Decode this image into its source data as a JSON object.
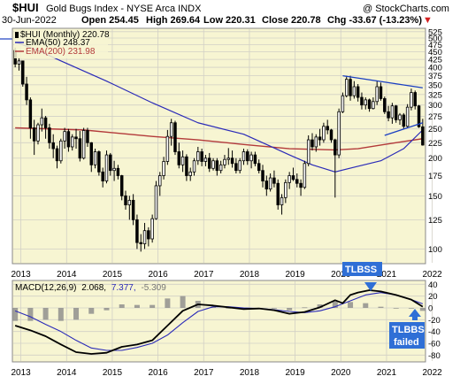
{
  "header": {
    "symbol": "$HUI",
    "name": "Gold Bugs Index - NYSE Arca INDX",
    "copyright": "@ StockCharts.com",
    "date": "30-Jun-2022",
    "open": "Open 254.45",
    "high": "High 269.64",
    "low": "Low 220.31",
    "close": "Close 220.78",
    "chg": "Chg -33.67 (-13.23%)",
    "chg_symbol": "▼"
  },
  "legend": {
    "price": "$HUI (Monthly) 220.78",
    "ema50": "EMA(50) 248.37",
    "ema200": "EMA(200) 231.98"
  },
  "macd_label": {
    "name": "MACD(12,26,9)",
    "macd": "2.068,",
    "signal": "7.377,",
    "hist": "-5.309"
  },
  "annotations": {
    "tlbss": "TLBSS",
    "tlbbs": "TLBBS",
    "failed": "failed"
  },
  "colors": {
    "panel_bg": "#f7f5d2",
    "grid": "#d2d0c6",
    "candle": "#000000",
    "ema50": "#2b2bb8",
    "ema200": "#b33a3a",
    "trendline": "#1a3fc2",
    "annotation": "#2f6fd6",
    "hist": "#8a8a8a"
  },
  "chart_data": [
    {
      "type": "candlestick",
      "title": "$HUI Gold Bugs Index - NYSE Arca INDX (Monthly)",
      "x_labels": [
        "2013",
        "2014",
        "2015",
        "2016",
        "2017",
        "2018",
        "2019",
        "2020",
        "2021",
        "2022"
      ],
      "y_ticks": [
        100,
        125,
        150,
        175,
        200,
        225,
        250,
        275,
        300,
        325,
        350,
        375,
        400,
        425,
        450,
        475,
        500,
        525
      ],
      "y_scale": "log",
      "ylim": [
        90,
        535
      ],
      "ohlc": [
        [
          455,
          465,
          400,
          410
        ],
        [
          410,
          430,
          390,
          420
        ],
        [
          420,
          420,
          345,
          352
        ],
        [
          352,
          372,
          300,
          312
        ],
        [
          312,
          318,
          232,
          252
        ],
        [
          252,
          268,
          205,
          228
        ],
        [
          228,
          262,
          222,
          258
        ],
        [
          258,
          292,
          245,
          272
        ],
        [
          272,
          276,
          232,
          252
        ],
        [
          252,
          260,
          215,
          225
        ],
        [
          225,
          240,
          200,
          215
        ],
        [
          215,
          220,
          185,
          196
        ],
        [
          196,
          232,
          192,
          228
        ],
        [
          228,
          252,
          215,
          245
        ],
        [
          245,
          250,
          210,
          218
        ],
        [
          218,
          240,
          212,
          235
        ],
        [
          235,
          250,
          215,
          232
        ],
        [
          232,
          246,
          195,
          200
        ],
        [
          200,
          252,
          198,
          247
        ],
        [
          247,
          252,
          218,
          225
        ],
        [
          225,
          226,
          180,
          190
        ],
        [
          190,
          215,
          185,
          210
        ],
        [
          210,
          212,
          175,
          180
        ],
        [
          180,
          186,
          160,
          168
        ],
        [
          168,
          212,
          165,
          205
        ],
        [
          205,
          208,
          175,
          182
        ],
        [
          182,
          196,
          168,
          185
        ],
        [
          185,
          190,
          170,
          175
        ],
        [
          175,
          176,
          145,
          150
        ],
        [
          150,
          156,
          135,
          140
        ],
        [
          140,
          150,
          125,
          145
        ],
        [
          145,
          152,
          120,
          125
        ],
        [
          125,
          130,
          100,
          105
        ],
        [
          105,
          112,
          98,
          104
        ],
        [
          104,
          122,
          100,
          115
        ],
        [
          115,
          118,
          102,
          108
        ],
        [
          108,
          130,
          105,
          126
        ],
        [
          126,
          168,
          125,
          162
        ],
        [
          162,
          180,
          150,
          175
        ],
        [
          175,
          202,
          170,
          195
        ],
        [
          195,
          248,
          190,
          236
        ],
        [
          236,
          270,
          220,
          262
        ],
        [
          262,
          266,
          205,
          210
        ],
        [
          210,
          225,
          185,
          190
        ],
        [
          190,
          212,
          180,
          202
        ],
        [
          202,
          206,
          168,
          175
        ],
        [
          175,
          186,
          168,
          180
        ],
        [
          180,
          200,
          175,
          196
        ],
        [
          196,
          218,
          190,
          210
        ],
        [
          210,
          215,
          188,
          195
        ],
        [
          195,
          205,
          188,
          200
        ],
        [
          200,
          208,
          180,
          185
        ],
        [
          185,
          200,
          182,
          196
        ],
        [
          196,
          200,
          175,
          182
        ],
        [
          182,
          196,
          178,
          190
        ],
        [
          190,
          205,
          185,
          198
        ],
        [
          198,
          216,
          190,
          200
        ],
        [
          200,
          212,
          186,
          192
        ],
        [
          192,
          200,
          178,
          182
        ],
        [
          182,
          200,
          178,
          196
        ],
        [
          196,
          215,
          190,
          210
        ],
        [
          210,
          214,
          190,
          196
        ],
        [
          196,
          210,
          185,
          205
        ],
        [
          205,
          210,
          188,
          192
        ],
        [
          192,
          198,
          178,
          182
        ],
        [
          182,
          190,
          160,
          168
        ],
        [
          168,
          175,
          150,
          158
        ],
        [
          158,
          178,
          155,
          172
        ],
        [
          172,
          182,
          160,
          165
        ],
        [
          165,
          170,
          135,
          140
        ],
        [
          140,
          152,
          130,
          148
        ],
        [
          148,
          170,
          142,
          166
        ],
        [
          166,
          180,
          158,
          175
        ],
        [
          175,
          186,
          168,
          170
        ],
        [
          170,
          178,
          160,
          165
        ],
        [
          165,
          170,
          150,
          160
        ],
        [
          160,
          196,
          158,
          192
        ],
        [
          192,
          238,
          188,
          230
        ],
        [
          230,
          242,
          212,
          218
        ],
        [
          218,
          240,
          210,
          235
        ],
        [
          235,
          250,
          220,
          230
        ],
        [
          230,
          262,
          225,
          255
        ],
        [
          255,
          268,
          240,
          248
        ],
        [
          248,
          250,
          225,
          230
        ],
        [
          230,
          232,
          148,
          205
        ],
        [
          205,
          292,
          200,
          285
        ],
        [
          285,
          330,
          282,
          322
        ],
        [
          322,
          375,
          318,
          365
        ],
        [
          365,
          375,
          310,
          322
        ],
        [
          322,
          360,
          315,
          345
        ],
        [
          345,
          352,
          308,
          318
        ],
        [
          318,
          330,
          290,
          300
        ],
        [
          300,
          318,
          290,
          312
        ],
        [
          312,
          315,
          285,
          292
        ],
        [
          292,
          318,
          290,
          308
        ],
        [
          308,
          360,
          300,
          345
        ],
        [
          345,
          356,
          310,
          315
        ],
        [
          315,
          320,
          280,
          285
        ],
        [
          285,
          298,
          265,
          272
        ],
        [
          272,
          305,
          260,
          298
        ],
        [
          298,
          300,
          262,
          268
        ],
        [
          268,
          282,
          258,
          278
        ],
        [
          278,
          282,
          250,
          255
        ],
        [
          255,
          302,
          252,
          295
        ],
        [
          295,
          340,
          288,
          330
        ],
        [
          330,
          335,
          290,
          298
        ],
        [
          298,
          300,
          252,
          254
        ],
        [
          254,
          270,
          220,
          221
        ]
      ],
      "ema50_series": [
        [
          0,
          485
        ],
        [
          6,
          455
        ],
        [
          12,
          420
        ],
        [
          24,
          360
        ],
        [
          36,
          305
        ],
        [
          48,
          262
        ],
        [
          60,
          240
        ],
        [
          66,
          222
        ],
        [
          72,
          205
        ],
        [
          78,
          190
        ],
        [
          84,
          180
        ],
        [
          90,
          188
        ],
        [
          96,
          196
        ],
        [
          102,
          215
        ],
        [
          107,
          248
        ]
      ],
      "ema200_series": [
        [
          0,
          252
        ],
        [
          18,
          248
        ],
        [
          36,
          236
        ],
        [
          48,
          230
        ],
        [
          60,
          222
        ],
        [
          72,
          215
        ],
        [
          84,
          213
        ],
        [
          90,
          215
        ],
        [
          96,
          221
        ],
        [
          102,
          227
        ],
        [
          107,
          232
        ]
      ],
      "trendlines": [
        {
          "from": [
            86,
            375
          ],
          "to": [
            107,
            342
          ]
        },
        {
          "from": [
            97,
            238
          ],
          "to": [
            107,
            262
          ]
        }
      ]
    },
    {
      "type": "macd",
      "title": "MACD(12,26,9)",
      "y_ticks": [
        40,
        20,
        0,
        -20,
        -40,
        -60,
        -80
      ],
      "ylim": [
        -90,
        45
      ],
      "macd": [
        [
          0,
          -30
        ],
        [
          4,
          -38
        ],
        [
          8,
          -48
        ],
        [
          12,
          -62
        ],
        [
          16,
          -75
        ],
        [
          20,
          -78
        ],
        [
          24,
          -76
        ],
        [
          28,
          -66
        ],
        [
          32,
          -62
        ],
        [
          36,
          -55
        ],
        [
          40,
          -30
        ],
        [
          44,
          -5
        ],
        [
          48,
          6
        ],
        [
          52,
          4
        ],
        [
          56,
          1
        ],
        [
          60,
          -2
        ],
        [
          64,
          -1
        ],
        [
          68,
          -4
        ],
        [
          72,
          -10
        ],
        [
          76,
          -7
        ],
        [
          80,
          1
        ],
        [
          84,
          13
        ],
        [
          86,
          8
        ],
        [
          88,
          22
        ],
        [
          90,
          26
        ],
        [
          93,
          30
        ],
        [
          96,
          28
        ],
        [
          100,
          22
        ],
        [
          104,
          14
        ],
        [
          107,
          2
        ]
      ],
      "signal": [
        [
          0,
          -5
        ],
        [
          4,
          -15
        ],
        [
          8,
          -28
        ],
        [
          12,
          -40
        ],
        [
          16,
          -55
        ],
        [
          20,
          -68
        ],
        [
          24,
          -72
        ],
        [
          28,
          -72
        ],
        [
          32,
          -67
        ],
        [
          36,
          -60
        ],
        [
          40,
          -46
        ],
        [
          44,
          -25
        ],
        [
          48,
          -6
        ],
        [
          52,
          2
        ],
        [
          56,
          2
        ],
        [
          60,
          0
        ],
        [
          64,
          -1
        ],
        [
          68,
          -3
        ],
        [
          72,
          -6
        ],
        [
          76,
          -8
        ],
        [
          80,
          -5
        ],
        [
          84,
          2
        ],
        [
          88,
          12
        ],
        [
          92,
          22
        ],
        [
          96,
          26
        ],
        [
          100,
          22
        ],
        [
          104,
          14
        ],
        [
          107,
          7
        ]
      ],
      "histogram": [
        [
          0,
          -22
        ],
        [
          4,
          -22
        ],
        [
          8,
          -20
        ],
        [
          12,
          -22
        ],
        [
          16,
          -20
        ],
        [
          20,
          -10
        ],
        [
          24,
          -4
        ],
        [
          28,
          6
        ],
        [
          32,
          5
        ],
        [
          36,
          5
        ],
        [
          40,
          16
        ],
        [
          44,
          20
        ],
        [
          48,
          12
        ],
        [
          52,
          2
        ],
        [
          56,
          -1
        ],
        [
          60,
          -2
        ],
        [
          64,
          0
        ],
        [
          68,
          -1
        ],
        [
          72,
          -4
        ],
        [
          76,
          1
        ],
        [
          80,
          6
        ],
        [
          84,
          11
        ],
        [
          88,
          10
        ],
        [
          92,
          8
        ],
        [
          96,
          2
        ],
        [
          100,
          0
        ],
        [
          104,
          0
        ],
        [
          107,
          -5
        ]
      ]
    }
  ]
}
